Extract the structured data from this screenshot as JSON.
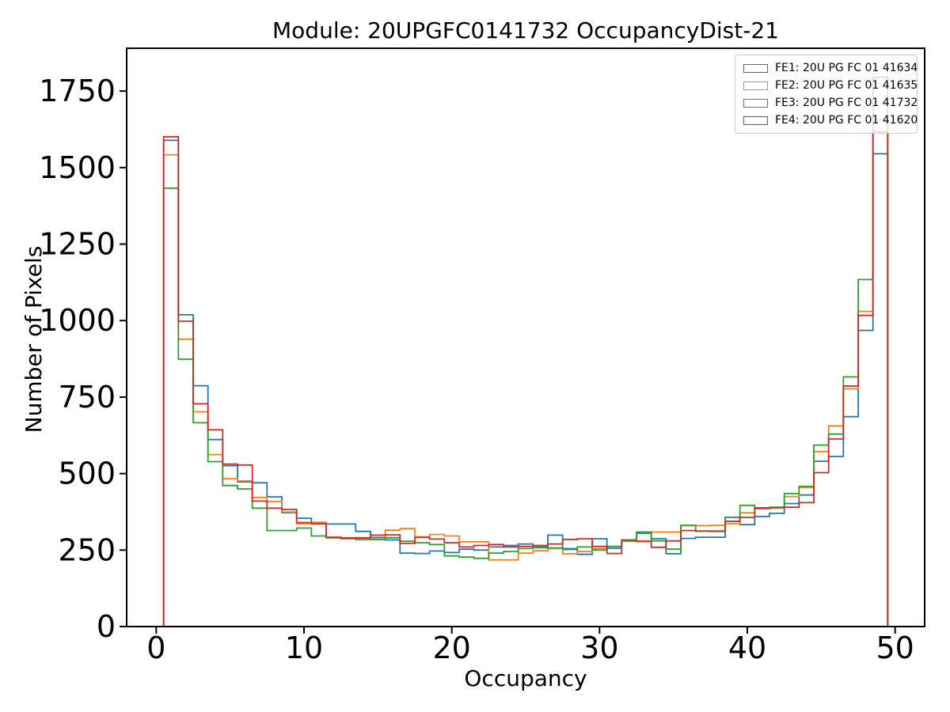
{
  "figure": {
    "title": "Module: 20UPGFC0141732 OccupancyDist-21",
    "xlabel": "Occupancy",
    "ylabel": "Number of Pixels"
  },
  "chart_data": {
    "type": "step-histogram",
    "title": "Module: 20UPGFC0141732 OccupancyDist-21",
    "xlabel": "Occupancy",
    "ylabel": "Number of Pixels",
    "grid": false,
    "legend_position": "upper right",
    "bin_width": 1,
    "bin_start": 0.5,
    "bin_end": 49.5,
    "bin_centers": [
      1,
      2,
      3,
      4,
      5,
      6,
      7,
      8,
      9,
      10,
      11,
      12,
      13,
      14,
      15,
      16,
      17,
      18,
      19,
      20,
      21,
      22,
      23,
      24,
      25,
      26,
      27,
      28,
      29,
      30,
      31,
      32,
      33,
      34,
      35,
      36,
      37,
      38,
      39,
      40,
      41,
      42,
      43,
      44,
      45,
      46,
      47,
      48,
      49
    ],
    "xlim": [
      -2,
      52
    ],
    "ylim": [
      0,
      1890
    ],
    "xticks": [
      0,
      10,
      20,
      30,
      40,
      50
    ],
    "yticks": [
      0,
      250,
      500,
      750,
      1000,
      1250,
      1500,
      1750
    ],
    "series": [
      {
        "name": "FE1: 20U PG FC 01 41634",
        "color": "#1f77b4",
        "values": [
          1589,
          1019,
          787,
          611,
          526,
          473,
          470,
          424,
          372,
          354,
          336,
          335,
          335,
          311,
          291,
          283,
          240,
          239,
          247,
          242,
          253,
          250,
          260,
          265,
          270,
          258,
          299,
          252,
          236,
          287,
          256,
          283,
          305,
          287,
          238,
          288,
          292,
          292,
          357,
          333,
          360,
          370,
          402,
          430,
          540,
          556,
          686,
          968,
          1545
        ]
      },
      {
        "name": "FE2: 20U PG FC 01 41635",
        "color": "#ff7f0e",
        "values": [
          1542,
          939,
          702,
          562,
          483,
          476,
          422,
          409,
          374,
          336,
          341,
          292,
          287,
          290,
          285,
          315,
          320,
          293,
          301,
          296,
          277,
          277,
          218,
          218,
          240,
          248,
          255,
          238,
          245,
          255,
          262,
          280,
          280,
          309,
          309,
          330,
          330,
          331,
          336,
          372,
          385,
          388,
          425,
          455,
          572,
          656,
          777,
          1030,
          1656
        ]
      },
      {
        "name": "FE3: 20U PG FC 01 41732",
        "color": "#2ca02c",
        "values": [
          1433,
          874,
          666,
          539,
          461,
          450,
          387,
          314,
          314,
          322,
          296,
          290,
          290,
          285,
          285,
          290,
          279,
          274,
          268,
          231,
          227,
          223,
          240,
          245,
          255,
          260,
          257,
          255,
          260,
          250,
          262,
          283,
          309,
          280,
          253,
          331,
          312,
          311,
          344,
          396,
          388,
          390,
          435,
          458,
          593,
          629,
          816,
          1134,
          1795
        ]
      },
      {
        "name": "FE4: 20U PG FC 01 41620",
        "color": "#d62728",
        "values": [
          1601,
          998,
          728,
          643,
          531,
          528,
          410,
          387,
          383,
          340,
          336,
          292,
          288,
          290,
          299,
          300,
          272,
          291,
          286,
          274,
          260,
          265,
          268,
          260,
          262,
          265,
          270,
          285,
          287,
          262,
          239,
          280,
          278,
          259,
          280,
          314,
          312,
          312,
          344,
          357,
          387,
          388,
          390,
          405,
          503,
          613,
          786,
          1017,
          1617
        ]
      }
    ]
  }
}
